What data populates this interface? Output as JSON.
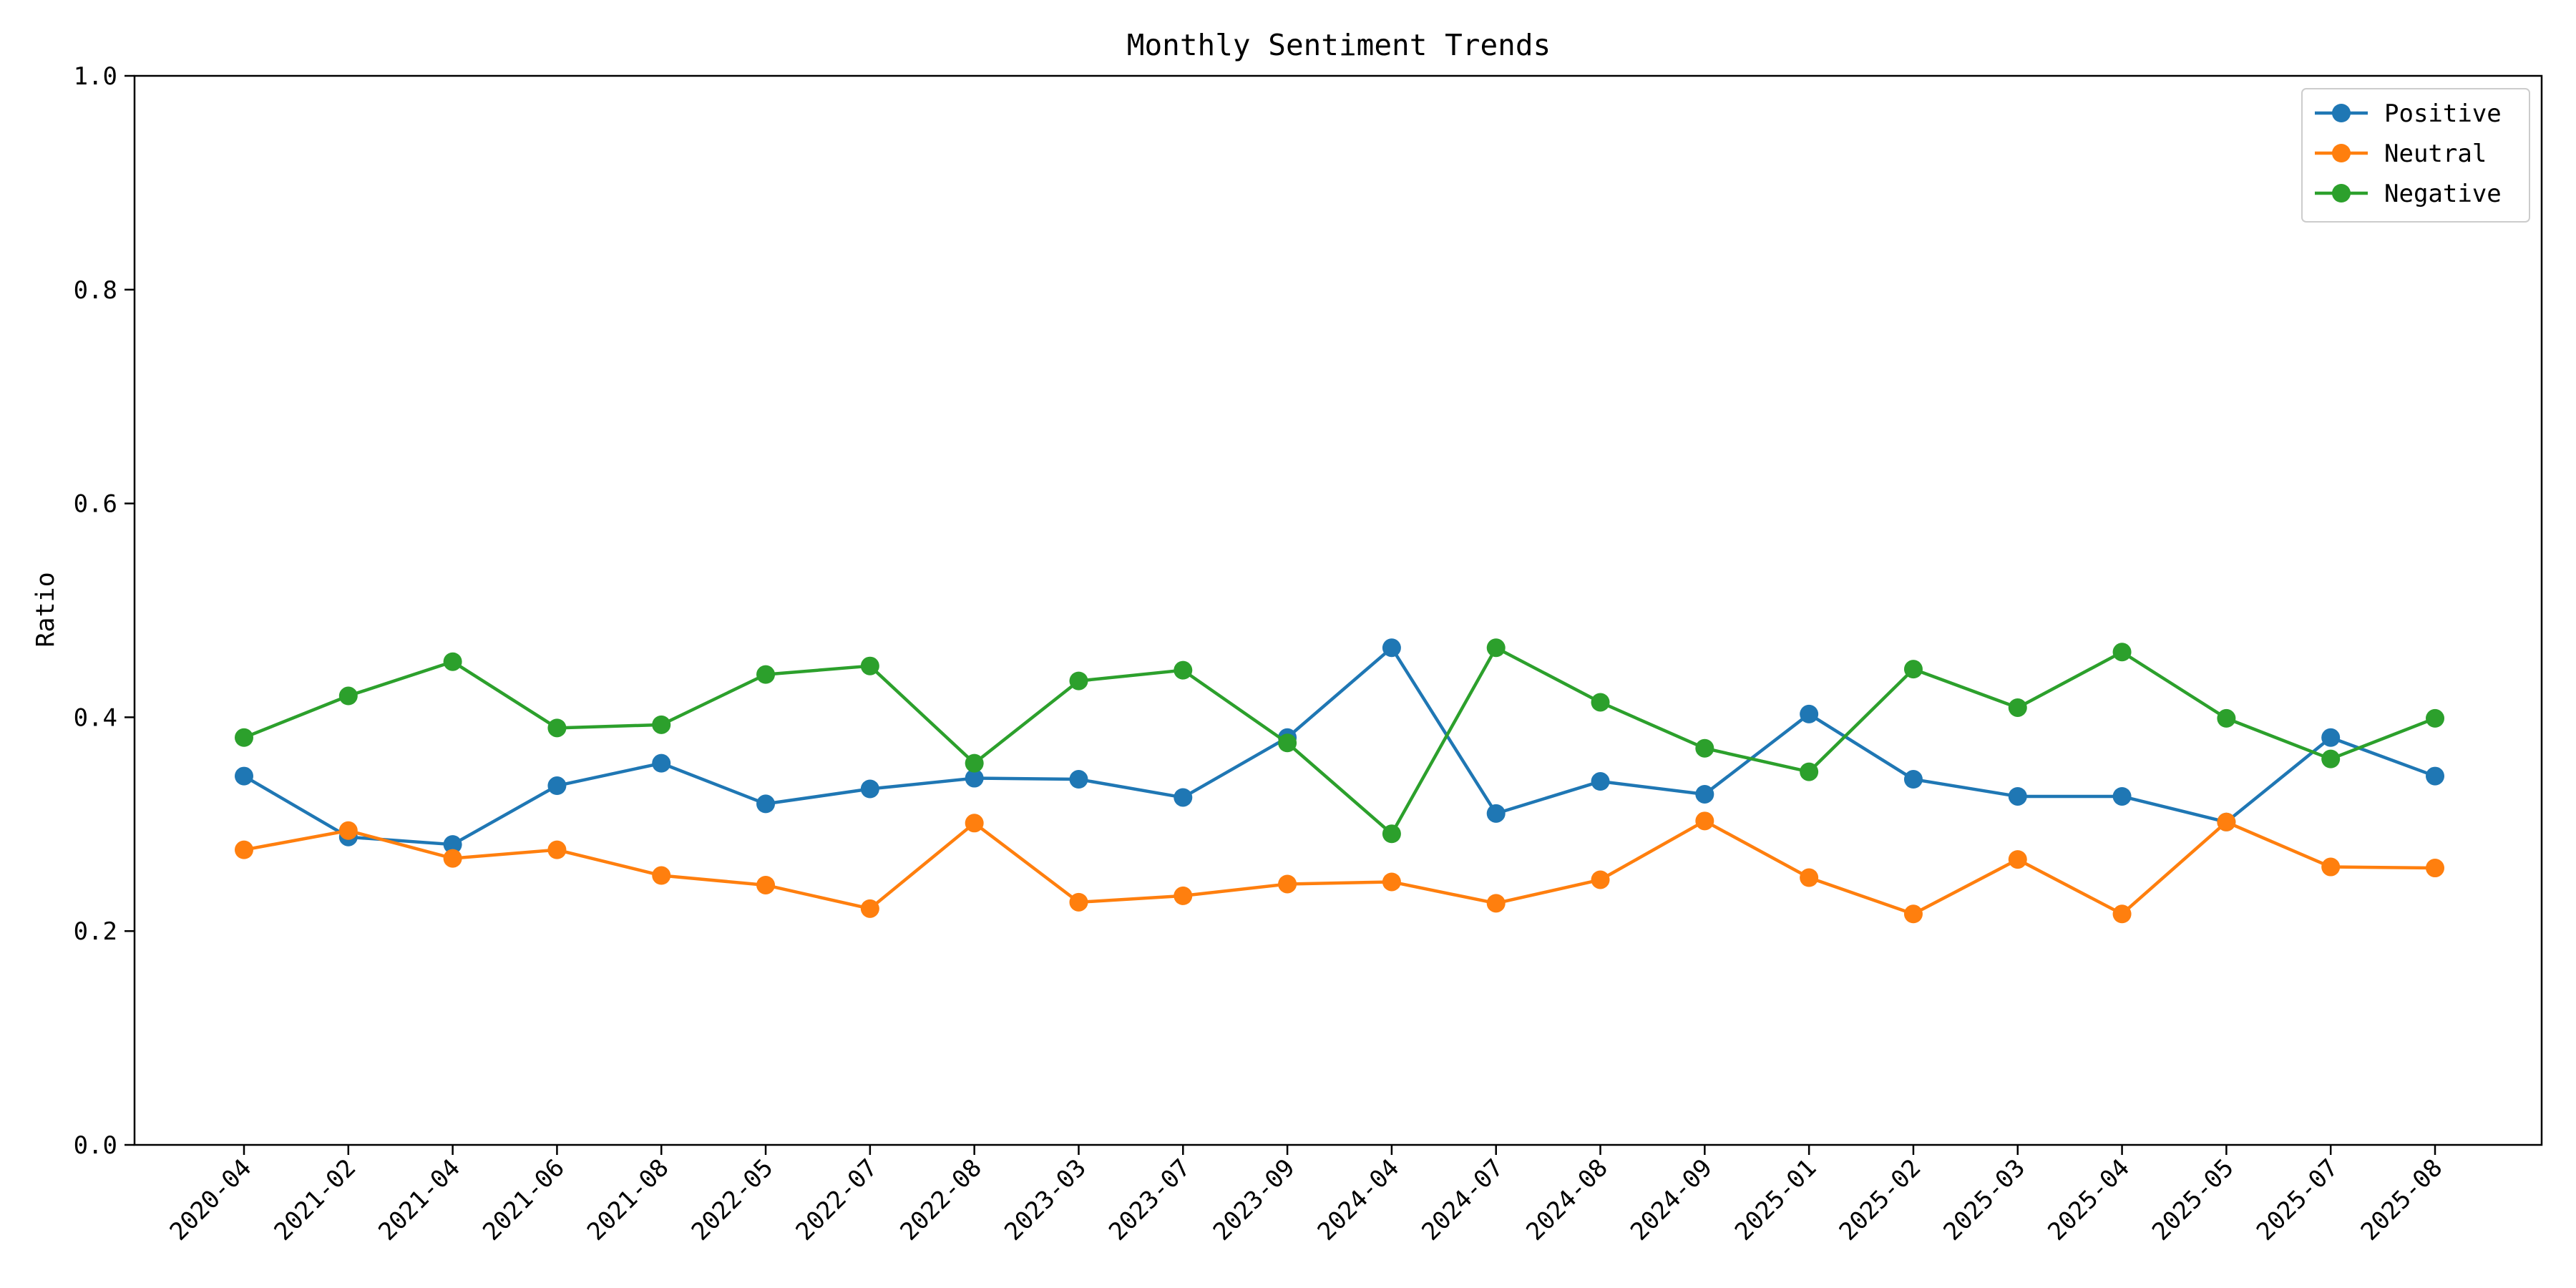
{
  "chart_data": {
    "type": "line",
    "title": "Monthly Sentiment Trends",
    "xlabel": "",
    "ylabel": "Ratio",
    "ylim": [
      0.0,
      1.0
    ],
    "yticks": [
      "0.0",
      "0.2",
      "0.4",
      "0.6",
      "0.8",
      "1.0"
    ],
    "grid": false,
    "legend_position": "top-right",
    "categories": [
      "2020-04",
      "2021-02",
      "2021-04",
      "2021-06",
      "2021-08",
      "2022-05",
      "2022-07",
      "2022-08",
      "2023-03",
      "2023-07",
      "2023-09",
      "2024-04",
      "2024-07",
      "2024-08",
      "2024-09",
      "2025-01",
      "2025-02",
      "2025-03",
      "2025-04",
      "2025-05",
      "2025-07",
      "2025-08"
    ],
    "series": [
      {
        "name": "Positive",
        "color": "#1f77b4",
        "values": [
          0.345,
          0.288,
          0.281,
          0.336,
          0.357,
          0.319,
          0.333,
          0.343,
          0.342,
          0.325,
          0.381,
          0.465,
          0.31,
          0.34,
          0.328,
          0.403,
          0.342,
          0.326,
          0.326,
          0.302,
          0.381,
          0.345
        ]
      },
      {
        "name": "Neutral",
        "color": "#ff7f0e",
        "values": [
          0.276,
          0.294,
          0.268,
          0.276,
          0.252,
          0.243,
          0.221,
          0.301,
          0.227,
          0.233,
          0.244,
          0.246,
          0.226,
          0.248,
          0.303,
          0.25,
          0.216,
          0.267,
          0.216,
          0.302,
          0.26,
          0.259
        ]
      },
      {
        "name": "Negative",
        "color": "#2ca02c",
        "values": [
          0.381,
          0.42,
          0.452,
          0.39,
          0.393,
          0.44,
          0.448,
          0.357,
          0.434,
          0.444,
          0.376,
          0.291,
          0.465,
          0.414,
          0.371,
          0.349,
          0.445,
          0.409,
          0.461,
          0.399,
          0.361,
          0.399
        ]
      }
    ]
  }
}
